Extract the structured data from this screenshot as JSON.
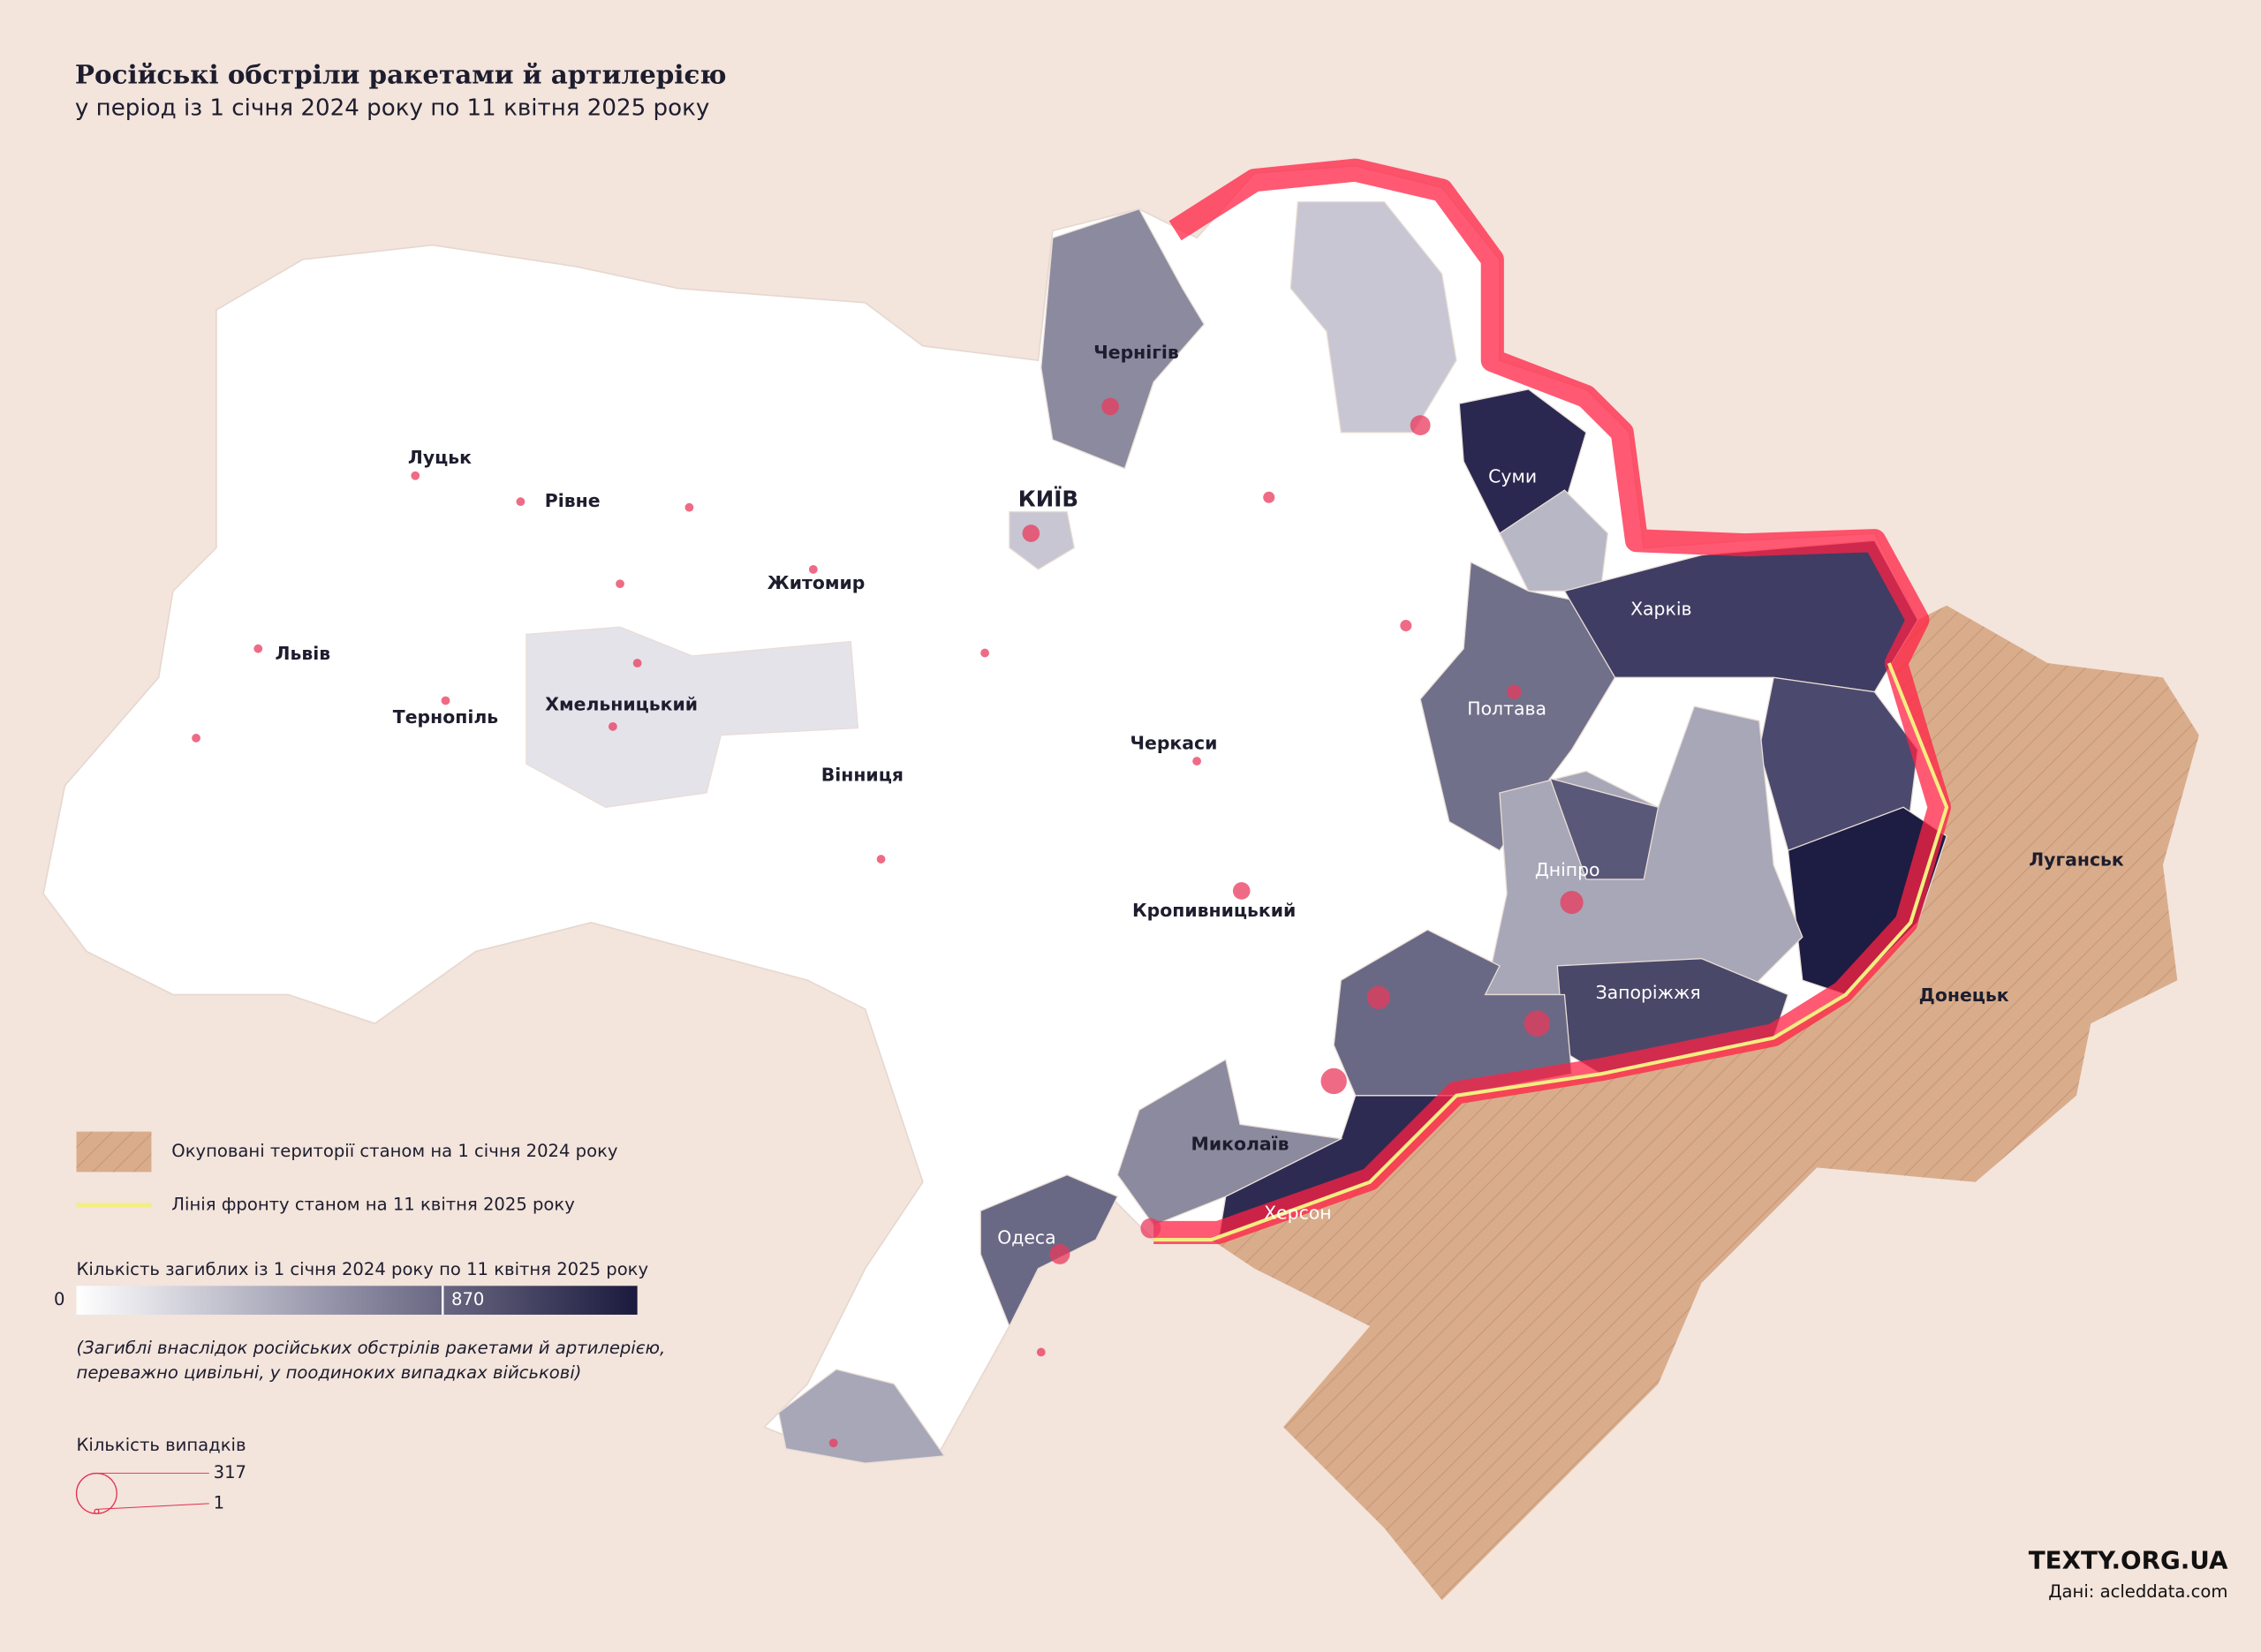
{
  "header": {
    "title": "Російські обстріли ракетами й артилерією",
    "subtitle": "у період із 1 січня 2024 року по 11 квітня 2025 року"
  },
  "cities": [
    "Луцьк",
    "Рівне",
    "Житомир",
    "КИЇВ",
    "Чернігів",
    "Суми",
    "Харків",
    "Полтава",
    "Черкаси",
    "Вінниця",
    "Хмельницький",
    "Тернопіль",
    "Львів",
    "Кропивницький",
    "Дніпро",
    "Запоріжжя",
    "Донецьк",
    "Луганськ",
    "Миколаїв",
    "Одеса",
    "Херсон"
  ],
  "legend": {
    "occupied": "Окуповані території станом на 1 січня 2024 року",
    "front_line": "Лінія фронту станом на 11 квітня 2025 року",
    "deaths": {
      "title": "Кількість загиблих із 1 січня 2024 року по 11 квітня 2025 року",
      "min": 0,
      "max": 870,
      "note": [
        "(Загиблі внаслідок російських обстрілів ракетами й артилерією,",
        "переважно цивільні, у поодиноких випадках військові)"
      ]
    },
    "cases": {
      "title": "Кількість випадків",
      "max": 317,
      "min": 1
    }
  },
  "source": {
    "brand": "TEXTY.ORG.UA",
    "data": "Дані: acleddata.com"
  }
}
